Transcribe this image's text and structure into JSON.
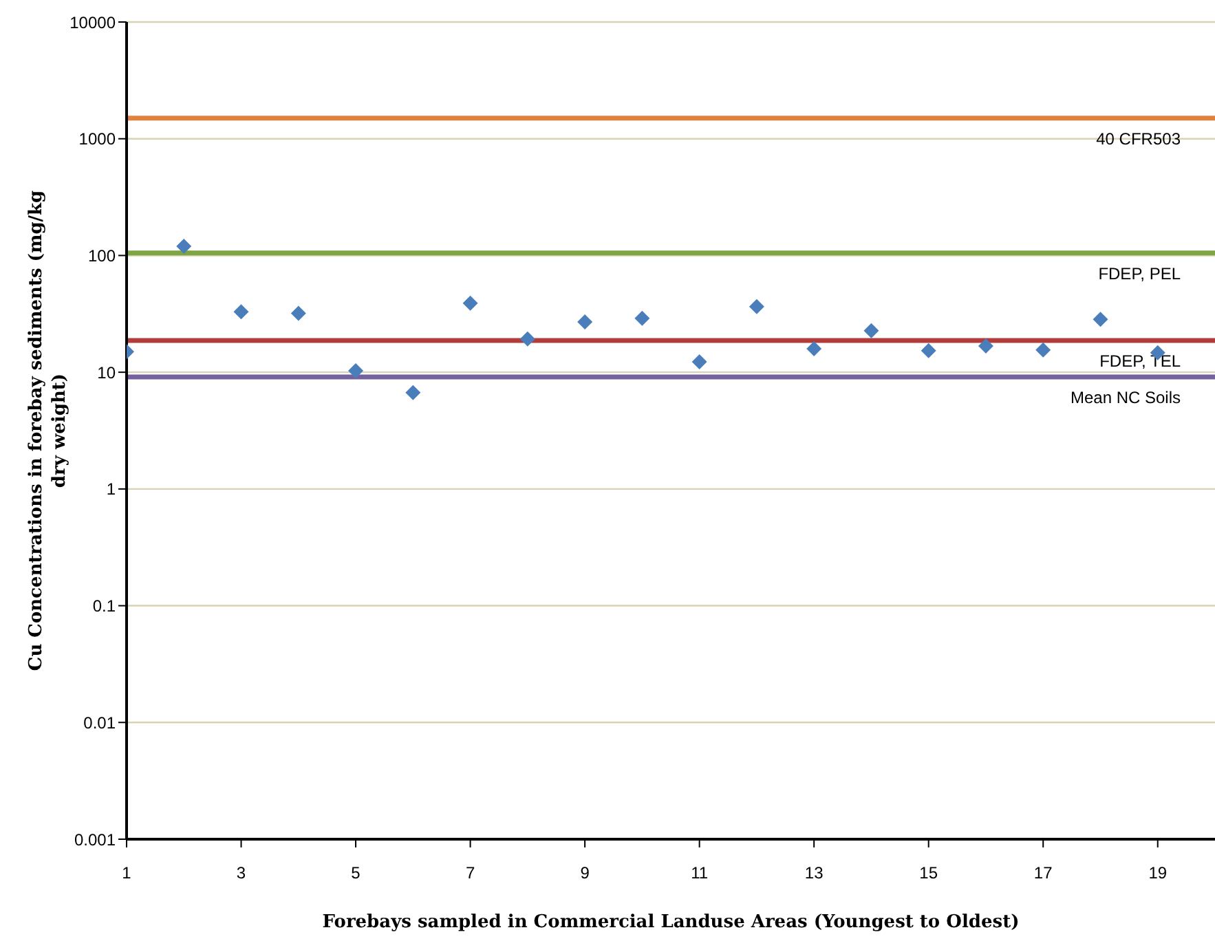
{
  "chart_data": {
    "type": "scatter",
    "xlabel": "Forebays sampled in Commercial Landuse Areas (Youngest to Oldest)",
    "ylabel": "Cu Concentrations in forebay sediments (mg/kg dry weight)",
    "x": [
      1,
      2,
      3,
      4,
      5,
      6,
      7,
      8,
      9,
      10,
      11,
      12,
      13,
      14,
      15,
      16,
      17,
      18,
      19
    ],
    "series": [
      {
        "color": "#4a7ebb",
        "values": [
          15,
          120,
          33,
          32,
          10.3,
          6.7,
          39,
          19.3,
          27,
          29,
          12.3,
          36.5,
          15.9,
          22.7,
          15.3,
          16.8,
          15.5,
          28.4,
          14.7
        ]
      }
    ],
    "xlim": [
      1,
      20
    ],
    "xticks": [
      1,
      3,
      5,
      7,
      9,
      11,
      13,
      15,
      17,
      19
    ],
    "ylim": [
      0.001,
      10000
    ],
    "yticks": [
      0.001,
      0.01,
      0.1,
      1,
      10,
      100,
      1000,
      10000
    ],
    "log": "y",
    "grid": "y",
    "marker": "diamond",
    "legend": false,
    "ref_lines": [
      {
        "axis": "y",
        "value": 1500,
        "label": "40 CFR503",
        "color": "#e0823d"
      },
      {
        "axis": "y",
        "value": 105,
        "label": "FDEP, PEL",
        "color": "#7fa443"
      },
      {
        "axis": "y",
        "value": 18.7,
        "label": "FDEP, TEL",
        "color": "#b23c3a"
      },
      {
        "axis": "y",
        "value": 9.1,
        "label": "Mean NC Soils",
        "color": "#7461a0"
      }
    ]
  }
}
